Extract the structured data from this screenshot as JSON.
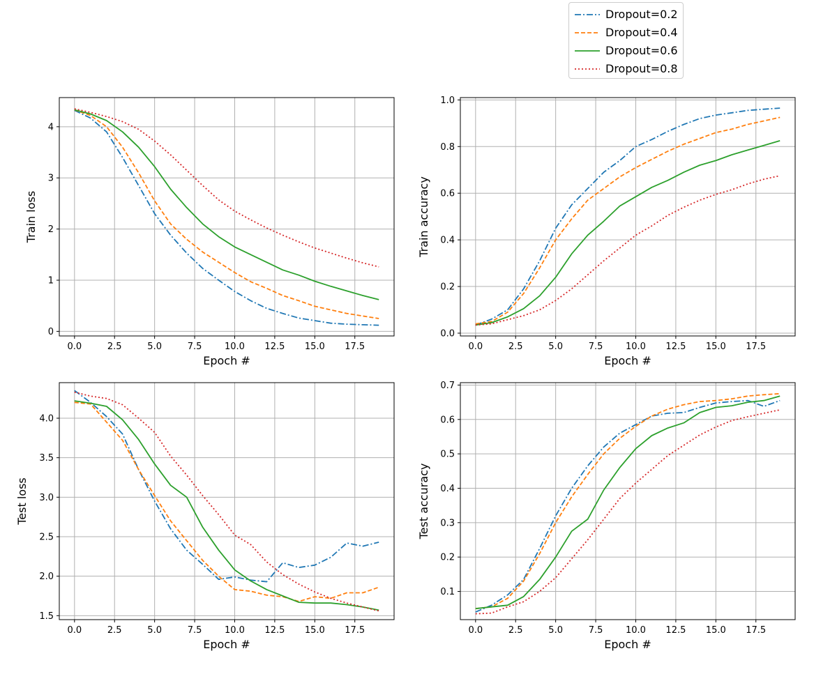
{
  "legend": {
    "items": [
      {
        "label": "Dropout=0.2",
        "color": "#1f77b4",
        "dash": "dashdot"
      },
      {
        "label": "Dropout=0.4",
        "color": "#ff7f0e",
        "dash": "dashed"
      },
      {
        "label": "Dropout=0.6",
        "color": "#2ca02c",
        "dash": "solid"
      },
      {
        "label": "Dropout=0.8",
        "color": "#d62728",
        "dash": "dotted"
      }
    ],
    "placement": "top-right, above the right column"
  },
  "chart_data": [
    {
      "type": "line",
      "title": "",
      "xlabel": "Epoch #",
      "ylabel": "Train loss",
      "xlim": [
        -0.95,
        19.95
      ],
      "ylim": [
        -0.09,
        4.57
      ],
      "xticks": [
        "0.0",
        "2.5",
        "5.0",
        "7.5",
        "10.0",
        "12.5",
        "15.0",
        "17.5"
      ],
      "yticks": [
        "0",
        "1",
        "2",
        "3",
        "4"
      ],
      "grid": true,
      "x": [
        0,
        1,
        2,
        3,
        4,
        5,
        6,
        7,
        8,
        9,
        10,
        11,
        12,
        13,
        14,
        15,
        16,
        17,
        18,
        19
      ],
      "series": [
        {
          "name": "Dropout=0.2",
          "values": [
            4.32,
            4.17,
            3.9,
            3.4,
            2.85,
            2.3,
            1.88,
            1.53,
            1.23,
            1.0,
            0.78,
            0.6,
            0.45,
            0.35,
            0.26,
            0.21,
            0.16,
            0.14,
            0.13,
            0.12
          ]
        },
        {
          "name": "Dropout=0.4",
          "values": [
            4.33,
            4.22,
            4.0,
            3.6,
            3.1,
            2.55,
            2.1,
            1.8,
            1.55,
            1.35,
            1.15,
            0.97,
            0.84,
            0.7,
            0.6,
            0.49,
            0.42,
            0.35,
            0.3,
            0.25
          ]
        },
        {
          "name": "Dropout=0.6",
          "values": [
            4.33,
            4.25,
            4.12,
            3.9,
            3.6,
            3.22,
            2.78,
            2.42,
            2.1,
            1.85,
            1.65,
            1.5,
            1.35,
            1.2,
            1.1,
            0.98,
            0.88,
            0.79,
            0.7,
            0.62
          ]
        },
        {
          "name": "Dropout=0.8",
          "values": [
            4.35,
            4.28,
            4.2,
            4.1,
            3.95,
            3.72,
            3.45,
            3.15,
            2.85,
            2.57,
            2.35,
            2.18,
            2.02,
            1.88,
            1.75,
            1.63,
            1.53,
            1.43,
            1.34,
            1.26
          ]
        }
      ]
    },
    {
      "type": "line",
      "title": "",
      "xlabel": "Epoch #",
      "ylabel": "Train accuracy",
      "xlim": [
        -0.95,
        19.95
      ],
      "ylim": [
        -0.012,
        1.01
      ],
      "xticks": [
        "0.0",
        "2.5",
        "5.0",
        "7.5",
        "10.0",
        "12.5",
        "15.0",
        "17.5"
      ],
      "yticks": [
        "0.0",
        "0.2",
        "0.4",
        "0.6",
        "0.8",
        "1.0"
      ],
      "grid": true,
      "x": [
        0,
        1,
        2,
        3,
        4,
        5,
        6,
        7,
        8,
        9,
        10,
        11,
        12,
        13,
        14,
        15,
        16,
        17,
        18,
        19
      ],
      "series": [
        {
          "name": "Dropout=0.2",
          "values": [
            0.035,
            0.06,
            0.1,
            0.19,
            0.31,
            0.45,
            0.55,
            0.62,
            0.69,
            0.74,
            0.8,
            0.83,
            0.865,
            0.895,
            0.92,
            0.935,
            0.945,
            0.955,
            0.96,
            0.965
          ]
        },
        {
          "name": "Dropout=0.4",
          "values": [
            0.04,
            0.05,
            0.09,
            0.17,
            0.28,
            0.4,
            0.49,
            0.57,
            0.62,
            0.67,
            0.71,
            0.745,
            0.78,
            0.81,
            0.835,
            0.86,
            0.875,
            0.895,
            0.91,
            0.925
          ]
        },
        {
          "name": "Dropout=0.6",
          "values": [
            0.035,
            0.045,
            0.07,
            0.105,
            0.16,
            0.24,
            0.34,
            0.42,
            0.48,
            0.545,
            0.585,
            0.625,
            0.655,
            0.69,
            0.72,
            0.74,
            0.765,
            0.785,
            0.805,
            0.825
          ]
        },
        {
          "name": "Dropout=0.8",
          "values": [
            0.035,
            0.04,
            0.058,
            0.075,
            0.1,
            0.14,
            0.19,
            0.25,
            0.31,
            0.365,
            0.42,
            0.46,
            0.505,
            0.54,
            0.57,
            0.595,
            0.615,
            0.64,
            0.66,
            0.675
          ]
        }
      ]
    },
    {
      "type": "line",
      "title": "",
      "xlabel": "Epoch #",
      "ylabel": "Test loss",
      "xlim": [
        -0.95,
        19.95
      ],
      "ylim": [
        1.45,
        4.45
      ],
      "xticks": [
        "0.0",
        "2.5",
        "5.0",
        "7.5",
        "10.0",
        "12.5",
        "15.0",
        "17.5"
      ],
      "yticks": [
        "1.5",
        "2.0",
        "2.5",
        "3.0",
        "3.5",
        "4.0"
      ],
      "grid": true,
      "x": [
        0,
        1,
        2,
        3,
        4,
        5,
        6,
        7,
        8,
        9,
        10,
        11,
        12,
        13,
        14,
        15,
        16,
        17,
        18,
        19
      ],
      "series": [
        {
          "name": "Dropout=0.2",
          "values": [
            4.35,
            4.2,
            4.02,
            3.8,
            3.35,
            2.95,
            2.6,
            2.33,
            2.15,
            1.96,
            1.99,
            1.95,
            1.93,
            2.17,
            2.11,
            2.14,
            2.24,
            2.42,
            2.38,
            2.43
          ]
        },
        {
          "name": "Dropout=0.4",
          "values": [
            4.2,
            4.18,
            3.95,
            3.72,
            3.35,
            3.02,
            2.7,
            2.45,
            2.2,
            2.0,
            1.83,
            1.81,
            1.76,
            1.74,
            1.68,
            1.74,
            1.72,
            1.79,
            1.79,
            1.86
          ]
        },
        {
          "name": "Dropout=0.6",
          "values": [
            4.22,
            4.19,
            4.15,
            3.98,
            3.73,
            3.42,
            3.15,
            3.0,
            2.62,
            2.33,
            2.08,
            1.94,
            1.83,
            1.75,
            1.67,
            1.66,
            1.66,
            1.64,
            1.61,
            1.57
          ]
        },
        {
          "name": "Dropout=0.8",
          "values": [
            4.33,
            4.28,
            4.25,
            4.17,
            4.0,
            3.82,
            3.52,
            3.28,
            3.02,
            2.78,
            2.52,
            2.4,
            2.18,
            2.02,
            1.9,
            1.8,
            1.72,
            1.66,
            1.61,
            1.56
          ]
        }
      ]
    },
    {
      "type": "line",
      "title": "",
      "xlabel": "Epoch #",
      "ylabel": "Test accuracy",
      "xlim": [
        -0.95,
        19.95
      ],
      "ylim": [
        0.018,
        0.707
      ],
      "xticks": [
        "0.0",
        "2.5",
        "5.0",
        "7.5",
        "10.0",
        "12.5",
        "15.0",
        "17.5"
      ],
      "yticks": [
        "0.1",
        "0.2",
        "0.3",
        "0.4",
        "0.5",
        "0.6",
        "0.7"
      ],
      "grid": true,
      "x": [
        0,
        1,
        2,
        3,
        4,
        5,
        6,
        7,
        8,
        9,
        10,
        11,
        12,
        13,
        14,
        15,
        16,
        17,
        18,
        19
      ],
      "series": [
        {
          "name": "Dropout=0.2",
          "values": [
            0.04,
            0.06,
            0.09,
            0.135,
            0.225,
            0.32,
            0.4,
            0.465,
            0.52,
            0.56,
            0.585,
            0.61,
            0.618,
            0.62,
            0.635,
            0.648,
            0.652,
            0.655,
            0.638,
            0.655
          ]
        },
        {
          "name": "Dropout=0.4",
          "values": [
            0.05,
            0.055,
            0.08,
            0.13,
            0.21,
            0.3,
            0.375,
            0.44,
            0.5,
            0.545,
            0.58,
            0.61,
            0.63,
            0.643,
            0.652,
            0.655,
            0.66,
            0.668,
            0.672,
            0.675
          ]
        },
        {
          "name": "Dropout=0.6",
          "values": [
            0.05,
            0.055,
            0.06,
            0.085,
            0.135,
            0.2,
            0.275,
            0.31,
            0.395,
            0.46,
            0.515,
            0.553,
            0.575,
            0.59,
            0.62,
            0.635,
            0.64,
            0.65,
            0.655,
            0.668
          ]
        },
        {
          "name": "Dropout=0.8",
          "values": [
            0.035,
            0.037,
            0.055,
            0.07,
            0.1,
            0.14,
            0.195,
            0.25,
            0.31,
            0.37,
            0.415,
            0.455,
            0.495,
            0.525,
            0.555,
            0.578,
            0.597,
            0.608,
            0.618,
            0.628
          ]
        }
      ]
    }
  ]
}
